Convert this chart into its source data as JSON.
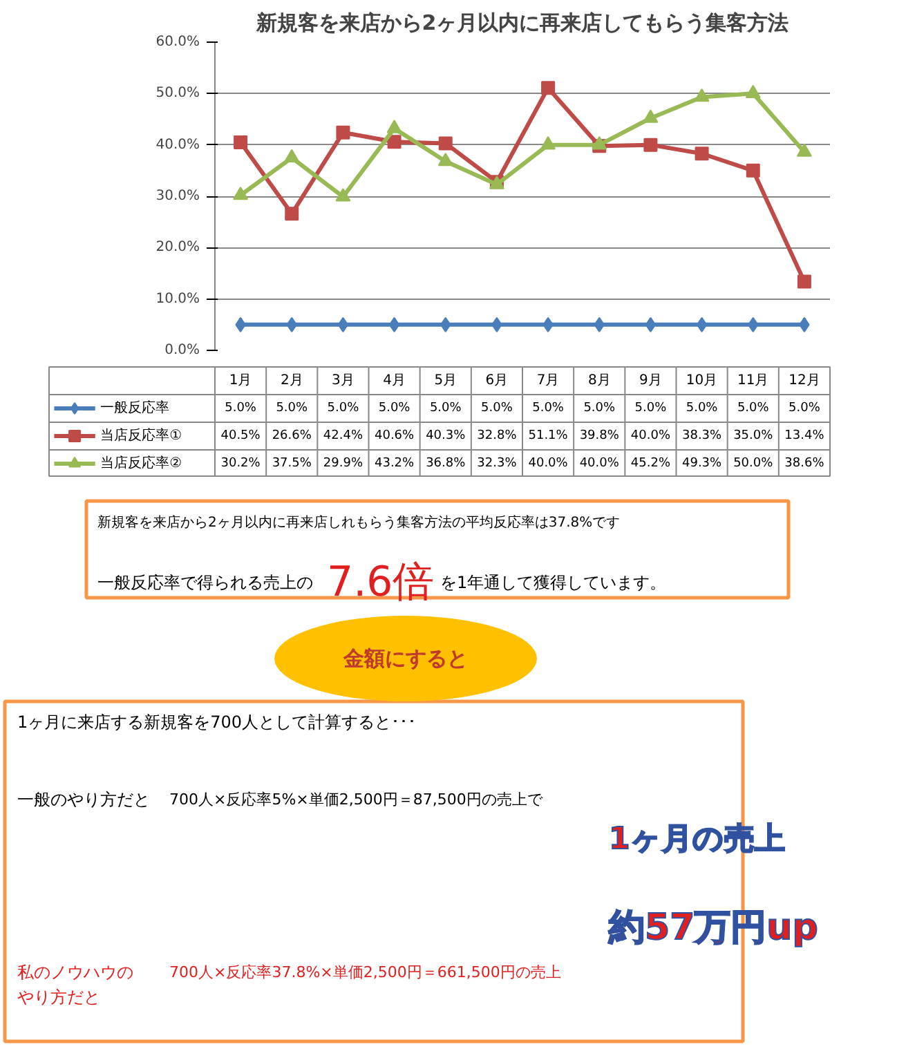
{
  "chart_data": {
    "type": "line",
    "title": "新規客を来店から2ヶ月以内に再来店してもらう集客方法",
    "categories": [
      "1月",
      "2月",
      "3月",
      "4月",
      "5月",
      "6月",
      "7月",
      "8月",
      "9月",
      "10月",
      "11月",
      "12月"
    ],
    "series": [
      {
        "name": "一般反応率",
        "color": "#4a7ebb",
        "marker": "diamond",
        "values": [
          5.0,
          5.0,
          5.0,
          5.0,
          5.0,
          5.0,
          5.0,
          5.0,
          5.0,
          5.0,
          5.0,
          5.0
        ],
        "value_labels": [
          "5.0%",
          "5.0%",
          "5.0%",
          "5.0%",
          "5.0%",
          "5.0%",
          "5.0%",
          "5.0%",
          "5.0%",
          "5.0%",
          "5.0%",
          "5.0%"
        ]
      },
      {
        "name": "当店反応率①",
        "color": "#be4b48",
        "marker": "square",
        "values": [
          40.5,
          26.6,
          42.4,
          40.6,
          40.3,
          32.8,
          51.1,
          39.8,
          40.0,
          38.3,
          35.0,
          13.4
        ],
        "value_labels": [
          "40.5%",
          "26.6%",
          "42.4%",
          "40.6%",
          "40.3%",
          "32.8%",
          "51.1%",
          "39.8%",
          "40.0%",
          "38.3%",
          "35.0%",
          "13.4%"
        ]
      },
      {
        "name": "当店反応率②",
        "color": "#98b954",
        "marker": "triangle",
        "values": [
          30.2,
          37.5,
          29.9,
          43.2,
          36.8,
          32.3,
          40.0,
          40.0,
          45.2,
          49.3,
          50.0,
          38.6
        ],
        "value_labels": [
          "30.2%",
          "37.5%",
          "29.9%",
          "43.2%",
          "36.8%",
          "32.3%",
          "40.0%",
          "40.0%",
          "45.2%",
          "49.3%",
          "50.0%",
          "38.6%"
        ]
      }
    ],
    "ylim": [
      0,
      60
    ],
    "yticks": [
      {
        "value": 0,
        "label": "0.0%"
      },
      {
        "value": 10,
        "label": "10.0%"
      },
      {
        "value": 20,
        "label": "20.0%"
      },
      {
        "value": 30,
        "label": "30.0%"
      },
      {
        "value": 40,
        "label": "40.0%"
      },
      {
        "value": 50,
        "label": "50.0%"
      },
      {
        "value": 60,
        "label": "60.0%"
      }
    ],
    "grid": "y",
    "legend": "bottom",
    "line_style": "solid",
    "annotations": [
      "新規客を来店から2ヶ月以内に再来店しれもらう集客方法の平均反応率は37.8%です",
      "一般反応率で得られる売上の",
      "7.6倍",
      "を1年通して獲得しています。",
      "金額にすると",
      "1ヶ月に来店する新規客を700人として計算すると･･･",
      "一般のやり方だと",
      "700人×反応率5%×単価2,500円＝87,500円の売上で",
      "1ヶ月の売上",
      "約57万円up",
      "私のノウハウの",
      "やり方だと",
      "700人×反応率37.8%×単価2,500円＝661,500円の売上"
    ]
  }
}
